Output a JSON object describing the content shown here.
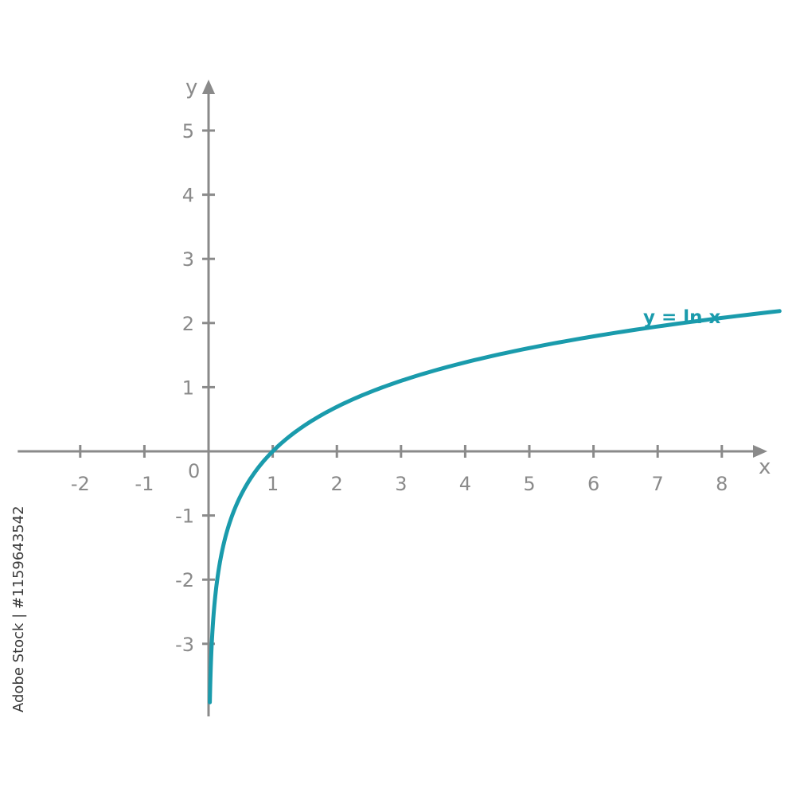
{
  "chart_data": {
    "type": "line",
    "xlabel": "x",
    "ylabel": "y",
    "origin_label": "0",
    "xlim": [
      -2.9,
      8.6
    ],
    "ylim": [
      -4.1,
      5.6
    ],
    "x_ticks": [
      -2,
      -1,
      1,
      2,
      3,
      4,
      5,
      6,
      7,
      8
    ],
    "x_tick_labels": [
      "-2",
      "-1",
      "1",
      "2",
      "3",
      "4",
      "5",
      "6",
      "7",
      "8"
    ],
    "y_ticks": [
      5,
      4,
      3,
      2,
      1,
      -1,
      -2,
      -3
    ],
    "y_tick_labels": [
      "5",
      "4",
      "3",
      "2",
      "1",
      "-1",
      "-2",
      "-3"
    ],
    "grid": false,
    "series": [
      {
        "name": "y = ln x",
        "function": "ln",
        "x_range": [
          0.02,
          8.9
        ],
        "points": [
          {
            "x": 0.02,
            "y": -3.91
          },
          {
            "x": 0.1,
            "y": -2.3
          },
          {
            "x": 0.5,
            "y": -0.69
          },
          {
            "x": 1,
            "y": 0
          },
          {
            "x": 2,
            "y": 0.69
          },
          {
            "x": 4,
            "y": 1.39
          },
          {
            "x": 6,
            "y": 1.79
          },
          {
            "x": 8.9,
            "y": 2.19
          }
        ],
        "color": "#1a9bac"
      }
    ],
    "axis_color": "#8a8a8a"
  },
  "watermark": {
    "stock_id": "Adobe Stock | #1159643542"
  }
}
